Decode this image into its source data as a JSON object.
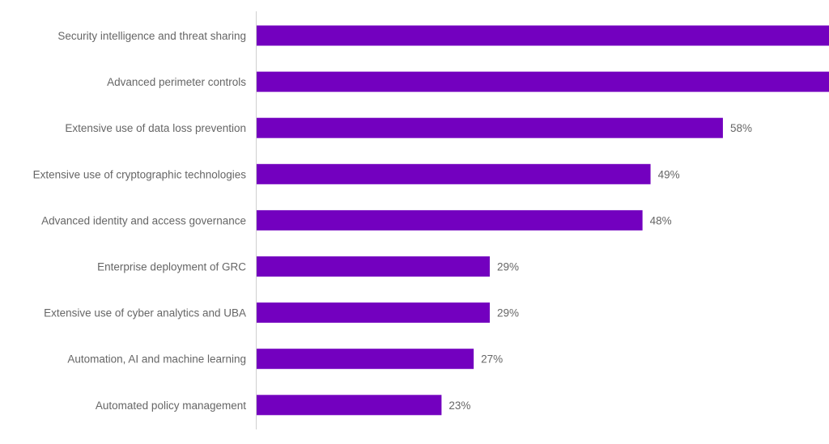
{
  "chart_data": {
    "type": "bar",
    "orientation": "horizontal",
    "title": "",
    "xlabel": "",
    "ylabel": "",
    "xlim": [
      0,
      71
    ],
    "grid": false,
    "bar_color": "#7300bf",
    "categories": [
      "Security intelligence and threat sharing",
      "Advanced perimeter controls",
      "Extensive use of data loss prevention",
      "Extensive use of cryptographic technologies",
      "Advanced identity and access governance",
      "Enterprise deployment of GRC",
      "Extensive use of cyber analytics and UBA",
      "Automation, AI and machine learning",
      "Automated policy management"
    ],
    "values": [
      null,
      null,
      58,
      49,
      48,
      29,
      29,
      27,
      23
    ],
    "labels": [
      "",
      "",
      "58%",
      "49%",
      "48%",
      "29%",
      "29%",
      "27%",
      "23%"
    ],
    "truncated_note_values": [
      ">71",
      ">71"
    ]
  }
}
